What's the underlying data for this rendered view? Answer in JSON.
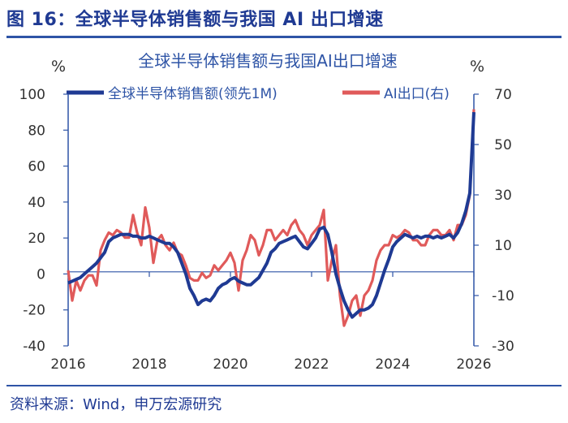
{
  "figure": {
    "title": "图 16：全球半导体销售额与我国 AI 出口增速",
    "source": "资料来源：Wind，申万宏源研究"
  },
  "chart_data": {
    "type": "line",
    "title": "全球半导体销售额与我国AI出口增速",
    "left_unit": "%",
    "right_unit": "%",
    "x_ticks": [
      "2016",
      "2018",
      "2020",
      "2022",
      "2024",
      "2026"
    ],
    "left_axis": {
      "ylim": [
        -40,
        100
      ],
      "ticks": [
        "100",
        "80",
        "60",
        "40",
        "20",
        "0",
        "-20",
        "-40"
      ]
    },
    "right_axis": {
      "ylim": [
        -30,
        70
      ],
      "ticks": [
        "70",
        "50",
        "30",
        "10",
        "-10",
        "-30"
      ]
    },
    "legend_position": "top",
    "grid": false,
    "colors": {
      "semi": "#1f3a93",
      "ai": "#e05a5a",
      "axis": "#2e54a6"
    },
    "series": [
      {
        "name": "全球半导体销售额(领先1M)",
        "axis": "left",
        "x": [
          2016.0,
          2016.1,
          2016.2,
          2016.3,
          2016.4,
          2016.5,
          2016.6,
          2016.7,
          2016.8,
          2016.9,
          2017.0,
          2017.1,
          2017.2,
          2017.3,
          2017.4,
          2017.5,
          2017.6,
          2017.7,
          2017.8,
          2017.9,
          2018.0,
          2018.1,
          2018.2,
          2018.3,
          2018.4,
          2018.5,
          2018.6,
          2018.7,
          2018.8,
          2018.9,
          2019.0,
          2019.1,
          2019.2,
          2019.3,
          2019.4,
          2019.5,
          2019.6,
          2019.7,
          2019.8,
          2019.9,
          2020.0,
          2020.1,
          2020.2,
          2020.3,
          2020.4,
          2020.5,
          2020.6,
          2020.7,
          2020.8,
          2020.9,
          2021.0,
          2021.1,
          2021.2,
          2021.3,
          2021.4,
          2021.5,
          2021.6,
          2021.7,
          2021.8,
          2021.9,
          2022.0,
          2022.1,
          2022.2,
          2022.3,
          2022.4,
          2022.5,
          2022.6,
          2022.7,
          2022.8,
          2022.9,
          2023.0,
          2023.1,
          2023.2,
          2023.3,
          2023.4,
          2023.5,
          2023.6,
          2023.7,
          2023.8,
          2023.9,
          2024.0,
          2024.1,
          2024.2,
          2024.3,
          2024.4,
          2024.5,
          2024.6,
          2024.7,
          2024.8,
          2024.9,
          2025.0,
          2025.1,
          2025.2,
          2025.3,
          2025.4,
          2025.5,
          2025.6,
          2025.7,
          2025.8,
          2025.9,
          2026.0
        ],
        "values": [
          -5,
          -4,
          -3,
          -2,
          0,
          2,
          4,
          6,
          9,
          12,
          18,
          20,
          21,
          22,
          22,
          22,
          21,
          21,
          20,
          20,
          21,
          20,
          19,
          18,
          17,
          17,
          15,
          12,
          6,
          0,
          -8,
          -12,
          -17,
          -15,
          -14,
          -15,
          -12,
          -8,
          -6,
          -5,
          -3,
          -2,
          -4,
          -5,
          -6,
          -6,
          -4,
          -2,
          2,
          6,
          12,
          14,
          17,
          18,
          19,
          20,
          21,
          18,
          15,
          14,
          17,
          20,
          25,
          26,
          22,
          12,
          0,
          -8,
          -15,
          -20,
          -24,
          -22,
          -20,
          -20,
          -19,
          -17,
          -12,
          -5,
          2,
          8,
          15,
          18,
          20,
          22,
          21,
          20,
          21,
          20,
          21,
          21,
          20,
          21,
          20,
          21,
          22,
          20,
          23,
          28,
          35,
          45,
          90
        ]
      },
      {
        "name": "AI出口(右)",
        "axis": "right",
        "x": [
          2016.0,
          2016.1,
          2016.2,
          2016.3,
          2016.4,
          2016.5,
          2016.6,
          2016.7,
          2016.8,
          2016.9,
          2017.0,
          2017.1,
          2017.2,
          2017.3,
          2017.4,
          2017.5,
          2017.6,
          2017.7,
          2017.8,
          2017.9,
          2018.0,
          2018.1,
          2018.2,
          2018.3,
          2018.4,
          2018.5,
          2018.6,
          2018.7,
          2018.8,
          2018.9,
          2019.0,
          2019.1,
          2019.2,
          2019.3,
          2019.4,
          2019.5,
          2019.6,
          2019.7,
          2019.8,
          2019.9,
          2020.0,
          2020.1,
          2020.2,
          2020.3,
          2020.4,
          2020.5,
          2020.6,
          2020.7,
          2020.8,
          2020.9,
          2021.0,
          2021.1,
          2021.2,
          2021.3,
          2021.4,
          2021.5,
          2021.6,
          2021.7,
          2021.8,
          2021.9,
          2022.0,
          2022.1,
          2022.2,
          2022.3,
          2022.4,
          2022.5,
          2022.6,
          2022.7,
          2022.8,
          2022.9,
          2023.0,
          2023.1,
          2023.2,
          2023.3,
          2023.4,
          2023.5,
          2023.6,
          2023.7,
          2023.8,
          2023.9,
          2024.0,
          2024.1,
          2024.2,
          2024.3,
          2024.4,
          2024.5,
          2024.6,
          2024.7,
          2024.8,
          2024.9,
          2025.0,
          2025.1,
          2025.2,
          2025.3,
          2025.4,
          2025.5,
          2025.6,
          2025.7,
          2025.8,
          2025.9,
          2026.0
        ],
        "values": [
          0,
          -12,
          -4,
          -8,
          -4,
          -2,
          -2,
          -6,
          8,
          12,
          15,
          14,
          16,
          15,
          13,
          13,
          22,
          15,
          10,
          25,
          17,
          3,
          12,
          14,
          10,
          8,
          11,
          7,
          6,
          2,
          -3,
          -4,
          -4,
          -1,
          -3,
          -2,
          2,
          0,
          2,
          4,
          7,
          3,
          -8,
          4,
          8,
          14,
          12,
          6,
          10,
          16,
          16,
          12,
          14,
          16,
          14,
          18,
          20,
          16,
          14,
          10,
          14,
          16,
          18,
          24,
          -4,
          4,
          10,
          -10,
          -22,
          -18,
          -12,
          -10,
          -18,
          -10,
          -8,
          -4,
          4,
          8,
          10,
          10,
          14,
          13,
          14,
          16,
          15,
          12,
          12,
          10,
          10,
          14,
          16,
          16,
          14,
          14,
          16,
          12,
          18,
          18,
          22,
          30,
          64
        ]
      }
    ]
  }
}
